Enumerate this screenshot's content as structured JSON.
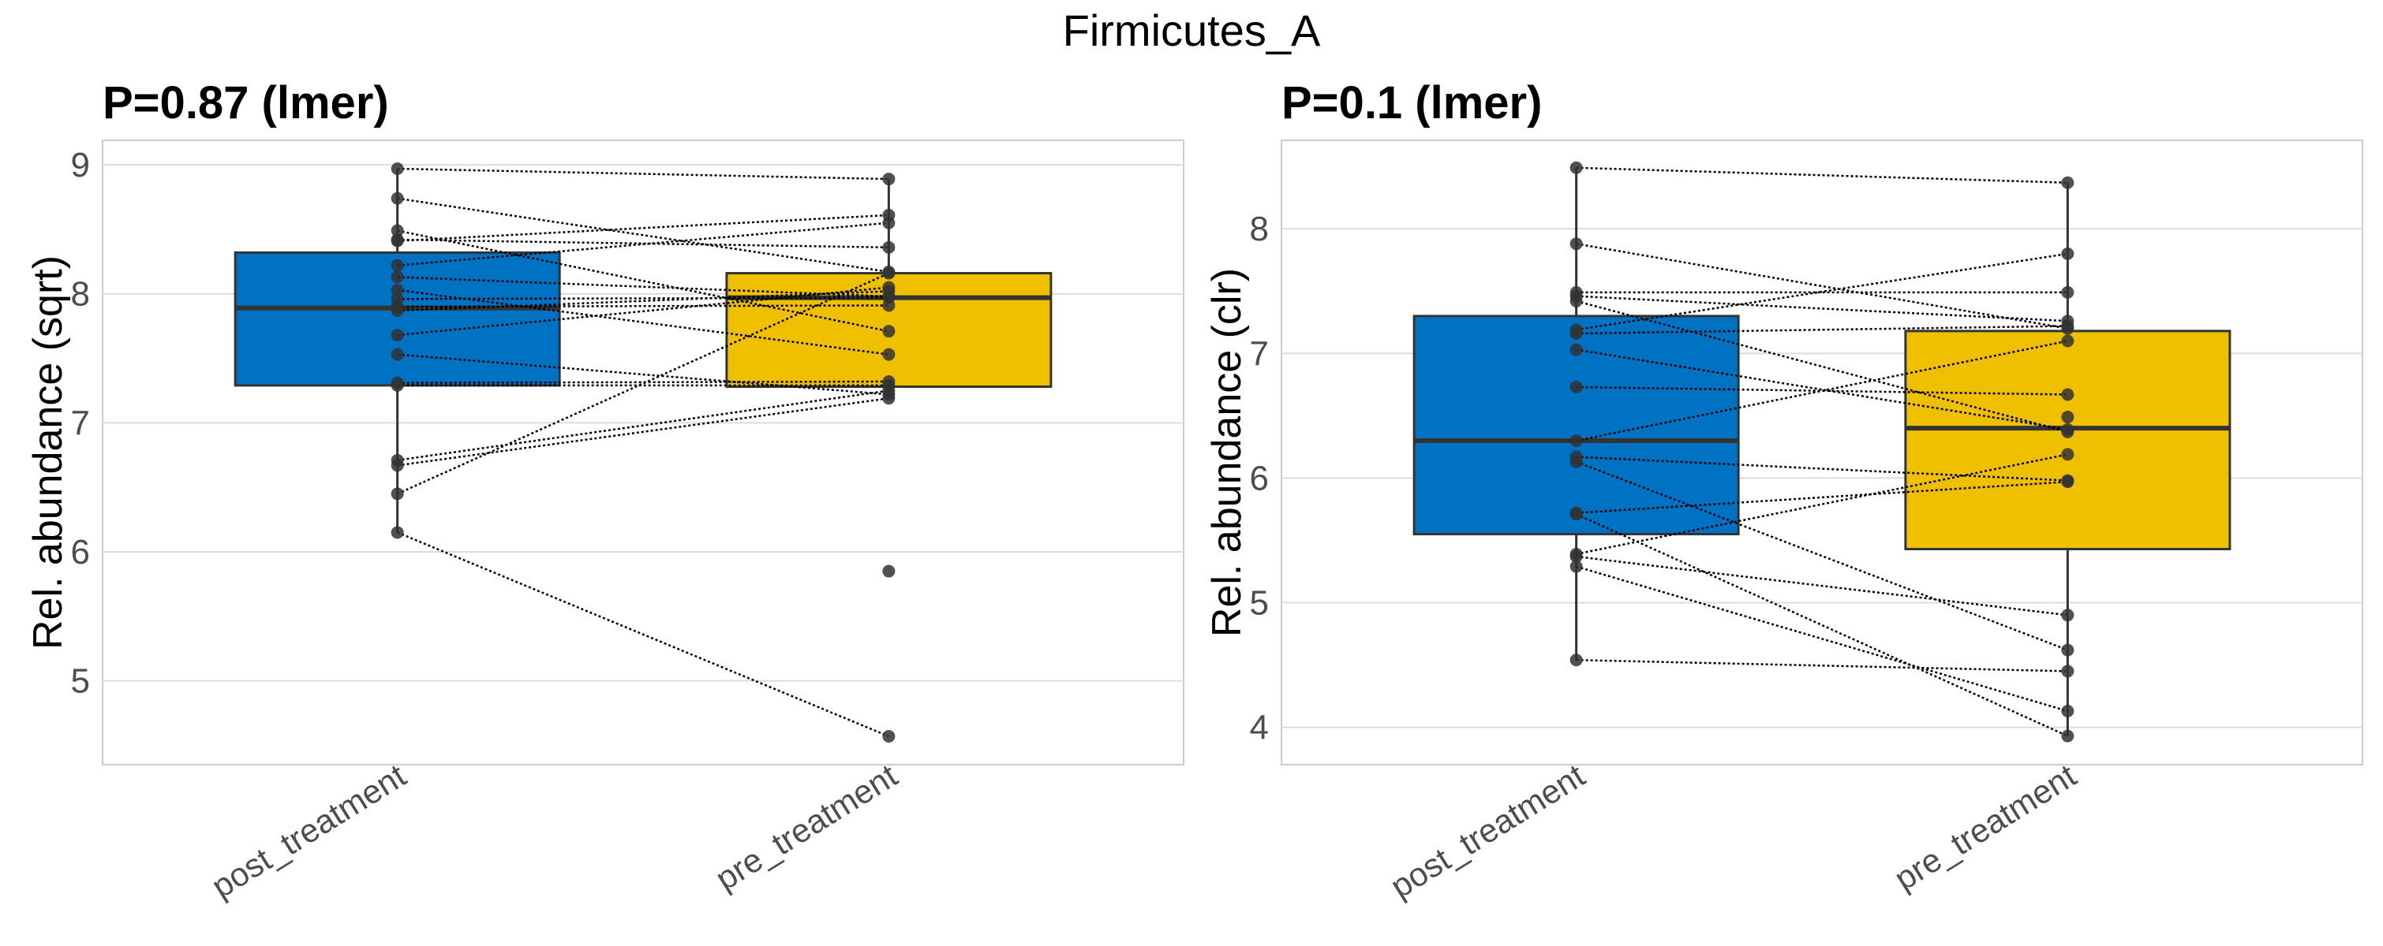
{
  "title": "Firmicutes_A",
  "colors": {
    "post_treatment": "#0072C4",
    "pre_treatment": "#EFC000",
    "points": "#333333",
    "grid": "#dcdcdc",
    "frame": "#cccccc"
  },
  "chart_data": [
    {
      "type": "box",
      "title": "P=0.87 (lmer)",
      "ylabel": "Rel. abundance (sqrt)",
      "xlabel": "",
      "categories": [
        "post_treatment",
        "pre_treatment"
      ],
      "yticks": [
        5,
        6,
        7,
        8,
        9
      ],
      "ylim": [
        4.35,
        9.19
      ],
      "grid": true,
      "boxes": [
        {
          "q1": 7.29,
          "median": 7.89,
          "q3": 8.32,
          "whisker_low": 6.15,
          "whisker_high": 8.97
        },
        {
          "q1": 7.28,
          "median": 7.97,
          "q3": 8.16,
          "whisker_low": 7.19,
          "whisker_high": 8.89
        }
      ],
      "pairs": [
        [
          8.97,
          8.89
        ],
        [
          8.74,
          8.17
        ],
        [
          8.49,
          7.71
        ],
        [
          8.42,
          8.36
        ],
        [
          8.41,
          8.61
        ],
        [
          8.22,
          8.55
        ],
        [
          8.13,
          7.98
        ],
        [
          8.03,
          7.53
        ],
        [
          7.96,
          7.97
        ],
        [
          7.9,
          7.91
        ],
        [
          7.87,
          8.02
        ],
        [
          7.68,
          8.05
        ],
        [
          7.53,
          7.22
        ],
        [
          7.31,
          7.32
        ],
        [
          7.29,
          7.29
        ],
        [
          6.71,
          7.25
        ],
        [
          6.67,
          7.19
        ],
        [
          6.45,
          8.16
        ],
        [
          6.15,
          4.57
        ]
      ],
      "unpaired_pre": [
        5.85
      ]
    },
    {
      "type": "box",
      "title": "P=0.1 (lmer)",
      "ylabel": "Rel. abundance (clr)",
      "xlabel": "",
      "categories": [
        "post_treatment",
        "pre_treatment"
      ],
      "yticks": [
        4,
        5,
        6,
        7,
        8
      ],
      "ylim": [
        3.7,
        8.71
      ],
      "grid": true,
      "boxes": [
        {
          "q1": 5.55,
          "median": 6.3,
          "q3": 7.3,
          "whisker_low": 4.54,
          "whisker_high": 8.49
        },
        {
          "q1": 5.43,
          "median": 6.4,
          "q3": 7.18,
          "whisker_low": 3.93,
          "whisker_high": 8.37
        }
      ],
      "pairs": [
        [
          8.49,
          8.37
        ],
        [
          7.88,
          7.2
        ],
        [
          7.49,
          7.49
        ],
        [
          7.46,
          7.26
        ],
        [
          7.42,
          6.37
        ],
        [
          7.19,
          7.8
        ],
        [
          7.16,
          7.22
        ],
        [
          7.03,
          6.39
        ],
        [
          6.73,
          6.67
        ],
        [
          6.3,
          7.1
        ],
        [
          6.17,
          5.98
        ],
        [
          6.13,
          4.62
        ],
        [
          5.72,
          5.97
        ],
        [
          5.71,
          3.93
        ],
        [
          5.39,
          6.19
        ],
        [
          5.37,
          4.9
        ],
        [
          5.29,
          4.13
        ],
        [
          4.54,
          4.45
        ]
      ],
      "unpaired_pre": [
        6.49
      ]
    }
  ]
}
